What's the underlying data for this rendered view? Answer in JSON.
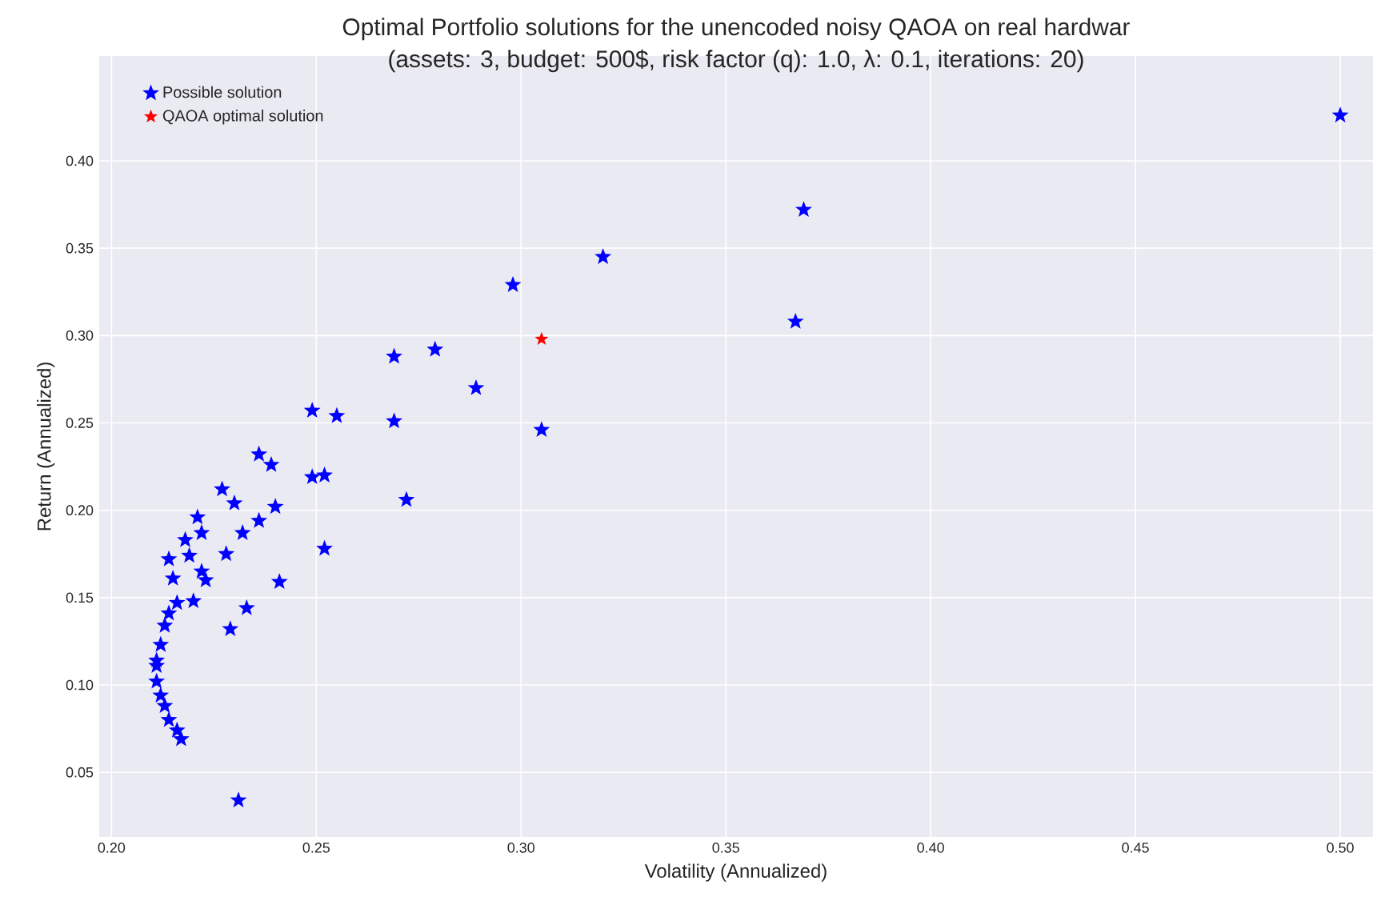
{
  "chart_data": {
    "type": "scatter",
    "title": "Optimal Portfolio solutions for the unencoded noisy QAOA on real hardwar",
    "subtitle": "(assets: 3, budget: 500$, risk factor (q): 1.0, λ: 0.1, iterations: 20)",
    "xlabel": "Volatility (Annualized)",
    "ylabel": "Return (Annualized)",
    "xlim": [
      0.197,
      0.508
    ],
    "ylim": [
      0.013,
      0.46
    ],
    "xticks": [
      {
        "value": 0.2,
        "label": "0.20"
      },
      {
        "value": 0.25,
        "label": "0.25"
      },
      {
        "value": 0.3,
        "label": "0.30"
      },
      {
        "value": 0.35,
        "label": "0.35"
      },
      {
        "value": 0.4,
        "label": "0.40"
      },
      {
        "value": 0.45,
        "label": "0.45"
      },
      {
        "value": 0.5,
        "label": "0.50"
      }
    ],
    "yticks": [
      {
        "value": 0.05,
        "label": "0.05"
      },
      {
        "value": 0.1,
        "label": "0.10"
      },
      {
        "value": 0.15,
        "label": "0.15"
      },
      {
        "value": 0.2,
        "label": "0.20"
      },
      {
        "value": 0.25,
        "label": "0.25"
      },
      {
        "value": 0.3,
        "label": "0.30"
      },
      {
        "value": 0.35,
        "label": "0.35"
      },
      {
        "value": 0.4,
        "label": "0.40"
      }
    ],
    "grid": true,
    "legend": "top left",
    "marker": "star",
    "series": [
      {
        "name": "Possible solution",
        "color": "#0000ff",
        "x": [
          0.5,
          0.369,
          0.32,
          0.298,
          0.367,
          0.269,
          0.279,
          0.289,
          0.305,
          0.249,
          0.255,
          0.269,
          0.236,
          0.239,
          0.227,
          0.23,
          0.249,
          0.252,
          0.272,
          0.24,
          0.221,
          0.222,
          0.232,
          0.236,
          0.218,
          0.214,
          0.219,
          0.228,
          0.252,
          0.222,
          0.223,
          0.215,
          0.241,
          0.22,
          0.216,
          0.233,
          0.214,
          0.213,
          0.229,
          0.212,
          0.211,
          0.211,
          0.211,
          0.212,
          0.213,
          0.214,
          0.216,
          0.217,
          0.231
        ],
        "values": [
          0.426,
          0.372,
          0.345,
          0.329,
          0.308,
          0.288,
          0.292,
          0.27,
          0.246,
          0.257,
          0.254,
          0.251,
          0.232,
          0.226,
          0.212,
          0.204,
          0.219,
          0.22,
          0.206,
          0.202,
          0.196,
          0.187,
          0.187,
          0.194,
          0.183,
          0.172,
          0.174,
          0.175,
          0.178,
          0.165,
          0.16,
          0.161,
          0.159,
          0.148,
          0.147,
          0.144,
          0.141,
          0.134,
          0.132,
          0.123,
          0.114,
          0.111,
          0.102,
          0.094,
          0.088,
          0.08,
          0.074,
          0.069,
          0.034
        ]
      },
      {
        "name": "QAOA optimal solution",
        "color": "#ff0000",
        "x": [
          0.305
        ],
        "values": [
          0.298
        ]
      }
    ]
  }
}
